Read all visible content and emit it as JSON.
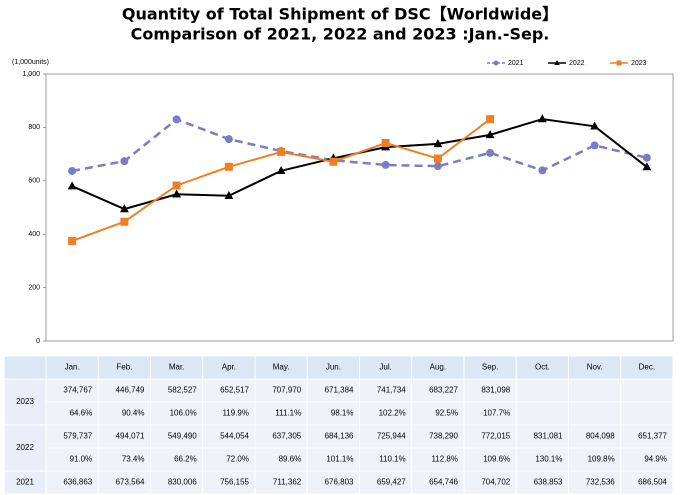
{
  "chart_data": {
    "type": "line",
    "title": "Quantity of Total Shipment of DSC【Worldwide】",
    "subtitle": "Comparison of 2021, 2022 and 2023 :Jan.-Sep.",
    "y_unit_label": "(1,000units)",
    "categories": [
      "Jan.",
      "Feb.",
      "Mar.",
      "Apr.",
      "May.",
      "Jun.",
      "Jul.",
      "Aug.",
      "Sep.",
      "Oct.",
      "Nov.",
      "Dec."
    ],
    "ylim": [
      0,
      1000
    ],
    "yticks": [
      0,
      200,
      400,
      600,
      800,
      {
        "value": 1000,
        "label": "1,000"
      }
    ],
    "series": [
      {
        "name": "2021",
        "color": "#7b7bc8",
        "marker": "circle",
        "dashed": true,
        "values": [
          636.863,
          673.564,
          830.006,
          756.155,
          711.362,
          676.803,
          659.427,
          654.746,
          704.702,
          638.853,
          732.536,
          686.504
        ],
        "value_labels": [
          "636,863",
          "673,564",
          "830,006",
          "756,155",
          "711,362",
          "676,803",
          "659,427",
          "654,746",
          "704,702",
          "638,853",
          "732,536",
          "686,504"
        ]
      },
      {
        "name": "2022",
        "color": "#000000",
        "marker": "triangle",
        "dashed": false,
        "values": [
          579.737,
          494.071,
          549.49,
          544.054,
          637.305,
          684.136,
          725.944,
          738.29,
          772.015,
          831.081,
          804.098,
          651.377
        ],
        "value_labels": [
          "579,737",
          "494,071",
          "549,490",
          "544,054",
          "637,305",
          "684,136",
          "725,944",
          "738,290",
          "772,015",
          "831,081",
          "804,098",
          "651,377"
        ],
        "yoy": [
          "91.0%",
          "73.4%",
          "66.2%",
          "72.0%",
          "89.6%",
          "101.1%",
          "110.1%",
          "112.8%",
          "109.6%",
          "130.1%",
          "109.8%",
          "94.9%"
        ]
      },
      {
        "name": "2023",
        "color": "#f07f22",
        "marker": "square",
        "dashed": false,
        "values": [
          374.767,
          446.749,
          582.527,
          652.517,
          707.97,
          671.384,
          741.734,
          683.227,
          831.098,
          null,
          null,
          null
        ],
        "value_labels": [
          "374,767",
          "446,749",
          "582,527",
          "652,517",
          "707,970",
          "671,384",
          "741,734",
          "683,227",
          "831,098",
          null,
          null,
          null
        ],
        "yoy": [
          "64.6%",
          "90.4%",
          "106.0%",
          "119.9%",
          "111.1%",
          "98.1%",
          "102.2%",
          "92.5%",
          "107.7%",
          null,
          null,
          null
        ]
      }
    ]
  }
}
